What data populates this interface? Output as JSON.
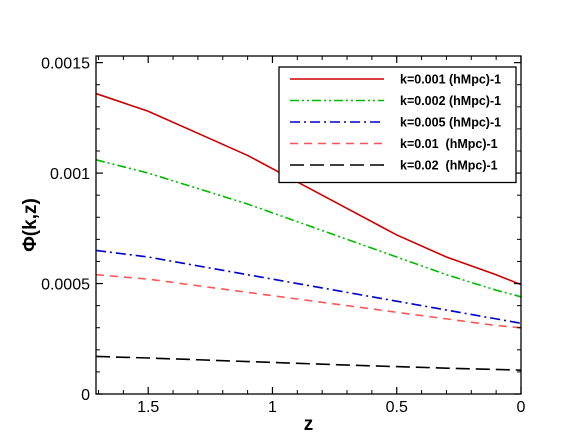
{
  "chart_data": {
    "type": "line",
    "title": "",
    "xlabel": "z",
    "ylabel": "Φ(k,z)",
    "x_reversed": true,
    "xlim": [
      0,
      1.71
    ],
    "ylim": [
      0,
      0.00153
    ],
    "xticks": [
      {
        "value": 1.5,
        "label": "1.5"
      },
      {
        "value": 1.0,
        "label": "1"
      },
      {
        "value": 0.5,
        "label": "0.5"
      },
      {
        "value": 0.0,
        "label": "0"
      }
    ],
    "yticks": [
      {
        "value": 0,
        "label": "0"
      },
      {
        "value": 0.0005,
        "label": "0.0005"
      },
      {
        "value": 0.001,
        "label": "0.001"
      },
      {
        "value": 0.0015,
        "label": "0.0015"
      }
    ],
    "legend_position": "top-right",
    "series": [
      {
        "name": "k=0.001 (hMpc)-1",
        "color": "#cc0000",
        "dash": "solid",
        "points": [
          [
            1.71,
            0.00136
          ],
          [
            1.5,
            0.00128
          ],
          [
            1.3,
            0.00118
          ],
          [
            1.1,
            0.00108
          ],
          [
            0.9,
            0.00096
          ],
          [
            0.7,
            0.00084
          ],
          [
            0.5,
            0.00072
          ],
          [
            0.3,
            0.00062
          ],
          [
            0.1,
            0.00054
          ],
          [
            0.0,
            0.000495
          ]
        ]
      },
      {
        "name": "k=0.002 (hMpc)-1",
        "color": "#00bb00",
        "dash": "dash-dot-dot",
        "points": [
          [
            1.71,
            0.00106
          ],
          [
            1.5,
            0.001
          ],
          [
            1.3,
            0.00093
          ],
          [
            1.1,
            0.00086
          ],
          [
            0.9,
            0.00078
          ],
          [
            0.7,
            0.0007
          ],
          [
            0.5,
            0.00062
          ],
          [
            0.3,
            0.00054
          ],
          [
            0.1,
            0.00047
          ],
          [
            0.0,
            0.00044
          ]
        ]
      },
      {
        "name": "k=0.005 (hMpc)-1",
        "color": "#0000cc",
        "dash": "dash-dot",
        "points": [
          [
            1.71,
            0.00065
          ],
          [
            1.5,
            0.00062
          ],
          [
            1.3,
            0.00058
          ],
          [
            1.1,
            0.00054
          ],
          [
            0.9,
            0.0005
          ],
          [
            0.7,
            0.00046
          ],
          [
            0.5,
            0.00042
          ],
          [
            0.3,
            0.00038
          ],
          [
            0.1,
            0.00034
          ],
          [
            0.0,
            0.00032
          ]
        ]
      },
      {
        "name": "k=0.01  (hMpc)-1",
        "color": "#ff5555",
        "dash": "dashed",
        "points": [
          [
            1.71,
            0.00054
          ],
          [
            1.5,
            0.00052
          ],
          [
            1.3,
            0.00049
          ],
          [
            1.1,
            0.00046
          ],
          [
            0.9,
            0.00043
          ],
          [
            0.7,
            0.0004
          ],
          [
            0.5,
            0.00037
          ],
          [
            0.3,
            0.00034
          ],
          [
            0.1,
            0.00031
          ],
          [
            0.0,
            0.0003
          ]
        ]
      },
      {
        "name": "k=0.02  (hMpc)-1",
        "color": "#000000",
        "dash": "long-dash",
        "points": [
          [
            1.71,
            0.00017
          ],
          [
            1.5,
            0.000163
          ],
          [
            1.3,
            0.000155
          ],
          [
            1.1,
            0.000147
          ],
          [
            0.9,
            0.000139
          ],
          [
            0.7,
            0.000131
          ],
          [
            0.5,
            0.000124
          ],
          [
            0.3,
            0.000117
          ],
          [
            0.1,
            0.000111
          ],
          [
            0.0,
            0.000108
          ]
        ]
      }
    ]
  }
}
